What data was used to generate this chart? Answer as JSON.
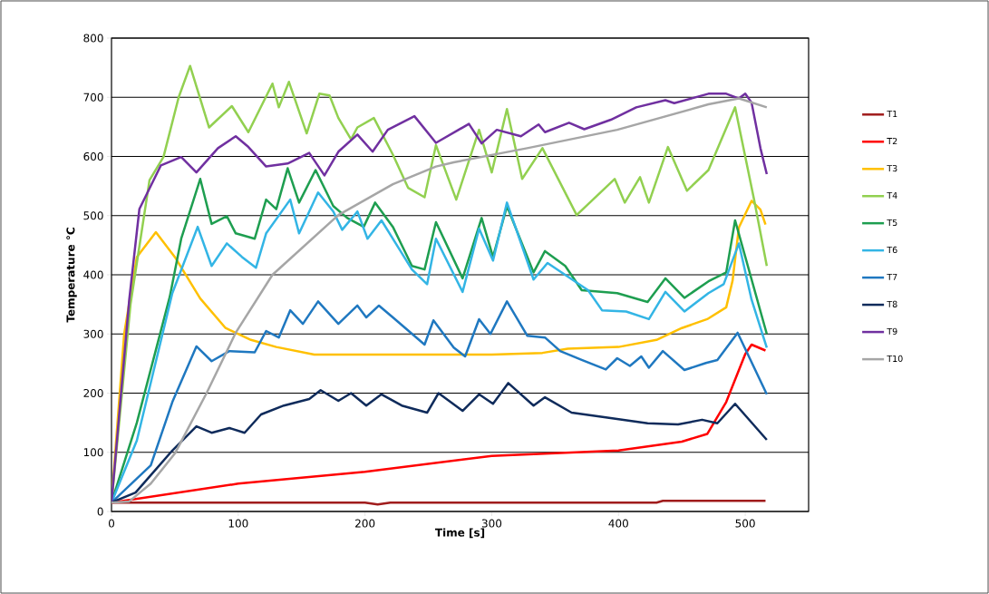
{
  "chart_data": {
    "type": "line",
    "xlabel": "Time [s]",
    "ylabel": "Temperature °C",
    "xlim": [
      0,
      550
    ],
    "xticks": [
      0,
      100,
      200,
      300,
      400,
      500
    ],
    "ylim": [
      0,
      800
    ],
    "yticks": [
      0,
      100,
      200,
      300,
      400,
      500,
      600,
      700,
      800
    ],
    "grid": "y",
    "legend": "right",
    "series": [
      {
        "name": "T1",
        "color": "#a01c1c",
        "x": [
          0,
          200,
          210,
          220,
          430,
          435,
          516
        ],
        "values": [
          15,
          15,
          12,
          15,
          15,
          18,
          18
        ]
      },
      {
        "name": "T2",
        "color": "#ff0000",
        "x": [
          0,
          100,
          200,
          300,
          400,
          450,
          470,
          485,
          500,
          505,
          516
        ],
        "values": [
          15,
          47,
          67,
          94,
          103,
          118,
          131,
          185,
          266,
          282,
          272
        ]
      },
      {
        "name": "T3",
        "color": "#ffc000",
        "x": [
          0,
          10,
          20,
          35,
          50,
          70,
          90,
          110,
          130,
          160,
          200,
          300,
          340,
          360,
          400,
          430,
          450,
          470,
          485,
          490,
          495,
          505,
          512,
          516
        ],
        "values": [
          15,
          300,
          430,
          472,
          430,
          360,
          310,
          290,
          278,
          265,
          265,
          265,
          268,
          275,
          278,
          290,
          310,
          325,
          345,
          390,
          480,
          525,
          510,
          485
        ]
      },
      {
        "name": "T4",
        "color": "#92d050",
        "x": [
          0,
          15,
          30,
          41,
          53,
          62,
          77,
          95,
          108,
          127,
          132,
          140,
          154,
          164,
          172,
          179,
          189,
          194,
          207,
          222,
          234,
          247,
          256,
          272,
          290,
          300,
          312,
          324,
          340,
          367,
          397,
          405,
          417,
          424,
          439,
          454,
          471,
          492,
          507,
          517
        ],
        "values": [
          15,
          350,
          560,
          599,
          700,
          753,
          649,
          685,
          641,
          723,
          683,
          726,
          639,
          706,
          703,
          665,
          629,
          649,
          665,
          603,
          547,
          531,
          619,
          527,
          645,
          573,
          680,
          562,
          614,
          501,
          562,
          522,
          565,
          522,
          616,
          542,
          577,
          683,
          527,
          415
        ]
      },
      {
        "name": "T5",
        "color": "#1e9e50",
        "x": [
          0,
          20,
          46,
          55,
          70,
          79,
          91,
          98,
          113,
          122,
          130,
          139,
          148,
          161,
          175,
          186,
          199,
          208,
          222,
          237,
          247,
          256,
          277,
          292,
          301,
          312,
          333,
          342,
          358,
          371,
          399,
          423,
          437,
          452,
          471,
          485,
          492,
          517
        ],
        "values": [
          15,
          150,
          363,
          461,
          562,
          486,
          499,
          470,
          461,
          527,
          511,
          580,
          522,
          577,
          516,
          496,
          481,
          522,
          481,
          415,
          409,
          489,
          394,
          496,
          430,
          516,
          404,
          440,
          415,
          374,
          369,
          354,
          394,
          361,
          389,
          404,
          492,
          300
        ]
      },
      {
        "name": "T6",
        "color": "#33b5e5",
        "x": [
          0,
          20,
          48,
          68,
          79,
          91,
          103,
          114,
          122,
          141,
          148,
          163,
          175,
          182,
          194,
          202,
          213,
          237,
          249,
          256,
          277,
          290,
          301,
          312,
          333,
          344,
          376,
          387,
          406,
          424,
          437,
          452,
          471,
          483,
          495,
          505,
          517
        ],
        "values": [
          15,
          120,
          369,
          481,
          415,
          453,
          430,
          412,
          470,
          527,
          470,
          539,
          507,
          476,
          507,
          461,
          492,
          409,
          384,
          461,
          371,
          478,
          424,
          522,
          392,
          420,
          374,
          340,
          338,
          325,
          371,
          338,
          369,
          384,
          453,
          358,
          277
        ]
      },
      {
        "name": "T7",
        "color": "#1f78c0",
        "x": [
          0,
          31,
          48,
          67,
          79,
          93,
          113,
          122,
          132,
          141,
          151,
          163,
          179,
          194,
          201,
          211,
          222,
          247,
          254,
          270,
          279,
          290,
          299,
          312,
          328,
          342,
          354,
          371,
          390,
          399,
          409,
          418,
          424,
          435,
          452,
          469,
          478,
          494,
          517
        ],
        "values": [
          15,
          78,
          185,
          279,
          254,
          271,
          269,
          305,
          294,
          340,
          317,
          355,
          317,
          348,
          328,
          348,
          328,
          282,
          323,
          277,
          262,
          325,
          300,
          355,
          297,
          294,
          271,
          256,
          240,
          259,
          246,
          262,
          243,
          271,
          239,
          251,
          256,
          302,
          198
        ]
      },
      {
        "name": "T8",
        "color": "#0f2b5b",
        "x": [
          0,
          19,
          48,
          67,
          79,
          93,
          105,
          118,
          136,
          156,
          165,
          179,
          189,
          201,
          213,
          229,
          249,
          258,
          277,
          290,
          301,
          313,
          333,
          342,
          363,
          390,
          423,
          447,
          466,
          478,
          492,
          517
        ],
        "values": [
          15,
          32,
          103,
          144,
          133,
          141,
          133,
          164,
          179,
          190,
          205,
          187,
          200,
          179,
          198,
          179,
          167,
          200,
          170,
          198,
          182,
          217,
          179,
          193,
          167,
          159,
          149,
          147,
          155,
          149,
          182,
          121
        ]
      },
      {
        "name": "T9",
        "color": "#7030a0",
        "x": [
          0,
          14,
          22,
          39,
          55,
          67,
          84,
          98,
          108,
          122,
          139,
          156,
          168,
          179,
          194,
          206,
          218,
          239,
          256,
          282,
          292,
          304,
          323,
          337,
          342,
          361,
          373,
          394,
          414,
          437,
          444,
          471,
          485,
          495,
          500,
          505,
          512,
          517
        ],
        "values": [
          15,
          358,
          511,
          585,
          599,
          573,
          614,
          634,
          616,
          583,
          588,
          606,
          568,
          608,
          637,
          608,
          645,
          668,
          623,
          655,
          622,
          645,
          634,
          654,
          641,
          657,
          646,
          662,
          683,
          695,
          690,
          706,
          706,
          698,
          706,
          691,
          614,
          570
        ]
      },
      {
        "name": "T10",
        "color": "#a6a6a6",
        "x": [
          0,
          14,
          31,
          50,
          75,
          98,
          127,
          179,
          222,
          256,
          270,
          328,
          399,
          471,
          495,
          517
        ],
        "values": [
          15,
          17,
          47,
          98,
          200,
          302,
          400,
          501,
          553,
          583,
          590,
          614,
          645,
          688,
          698,
          683
        ]
      }
    ]
  }
}
